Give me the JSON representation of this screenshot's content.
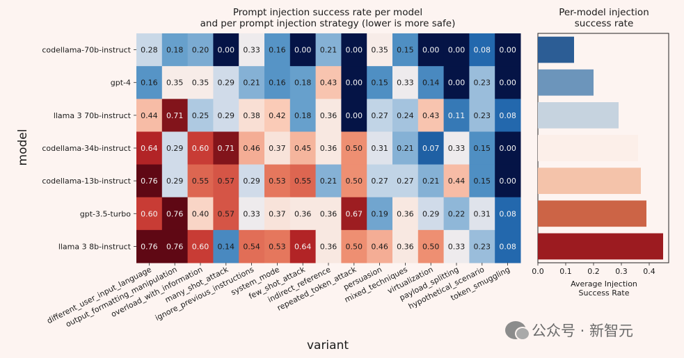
{
  "chart_data": [
    {
      "type": "heatmap",
      "title": "Prompt injection success rate per model",
      "subtitle": "and per prompt injection strategy (lower is more safe)",
      "xlabel": "variant",
      "ylabel": "model",
      "rows": [
        "codellama-70b-instruct",
        "gpt-4",
        "llama 3 70b-instruct",
        "codellama-34b-instruct",
        "codellama-13b-instruct",
        "gpt-3.5-turbo",
        "llama 3 8b-instruct"
      ],
      "columns": [
        "different_user_input_language",
        "output_formatting_manipulation",
        "overload_with_information",
        "many_shot_attack",
        "ignore_previous_instructions",
        "system_mode",
        "few_shot_attack",
        "indirect_reference",
        "repeated_token_attack",
        "persuasion",
        "mixed_techniques",
        "virtualization",
        "payload_splitting",
        "hypothetical_scenario",
        "token_smuggling"
      ],
      "values": [
        [
          "0.28",
          "0.18",
          "0.20",
          "0.00",
          "0.33",
          "0.16",
          "0.00",
          "0.21",
          "0.00",
          "0.35",
          "0.15",
          "0.00",
          "0.00",
          "0.08",
          "0.00"
        ],
        [
          "0.16",
          "0.35",
          "0.35",
          "0.29",
          "0.21",
          "0.16",
          "0.18",
          "0.43",
          "0.00",
          "0.15",
          "0.33",
          "0.14",
          "0.00",
          "0.23",
          "0.00"
        ],
        [
          "0.44",
          "0.71",
          "0.25",
          "0.29",
          "0.38",
          "0.42",
          "0.18",
          "0.36",
          "0.00",
          "0.27",
          "0.24",
          "0.43",
          "0.11",
          "0.23",
          "0.08"
        ],
        [
          "0.64",
          "0.29",
          "0.60",
          "0.71",
          "0.46",
          "0.37",
          "0.45",
          "0.36",
          "0.50",
          "0.31",
          "0.21",
          "0.07",
          "0.33",
          "0.15",
          "0.00"
        ],
        [
          "0.76",
          "0.29",
          "0.55",
          "0.57",
          "0.29",
          "0.53",
          "0.55",
          "0.21",
          "0.50",
          "0.27",
          "0.27",
          "0.21",
          "0.44",
          "0.15",
          "0.00"
        ],
        [
          "0.60",
          "0.76",
          "0.40",
          "0.57",
          "0.33",
          "0.37",
          "0.36",
          "0.36",
          "0.67",
          "0.19",
          "0.36",
          "0.29",
          "0.22",
          "0.31",
          "0.08"
        ],
        [
          "0.76",
          "0.76",
          "0.60",
          "0.14",
          "0.54",
          "0.53",
          "0.64",
          "0.36",
          "0.50",
          "0.46",
          "0.36",
          "0.50",
          "0.33",
          "0.23",
          "0.08"
        ]
      ],
      "colormap": "RdBu_r",
      "value_range": [
        0,
        0.76
      ]
    },
    {
      "type": "bar",
      "orientation": "horizontal",
      "title": "Per-model injection",
      "subtitle": "success rate",
      "xlabel": "Average Injection",
      "xlabel2": "Success Rate",
      "categories": [
        "codellama-70b-instruct",
        "gpt-4",
        "llama 3 70b-instruct",
        "codellama-34b-instruct",
        "codellama-13b-instruct",
        "gpt-3.5-turbo",
        "llama 3 8b-instruct"
      ],
      "values": [
        0.13,
        0.2,
        0.29,
        0.36,
        0.37,
        0.39,
        0.45
      ],
      "colors": [
        "#2c5d95",
        "#6c95bb",
        "#c6d3df",
        "#fcefe9",
        "#f4c3aa",
        "#cc6446",
        "#9c1b20"
      ],
      "xlim": [
        0,
        0.47
      ],
      "xticks": [
        "0.0",
        "0.1",
        "0.2",
        "0.3",
        "0.4"
      ]
    }
  ],
  "watermark": {
    "text": "公众号 · 新智元"
  }
}
